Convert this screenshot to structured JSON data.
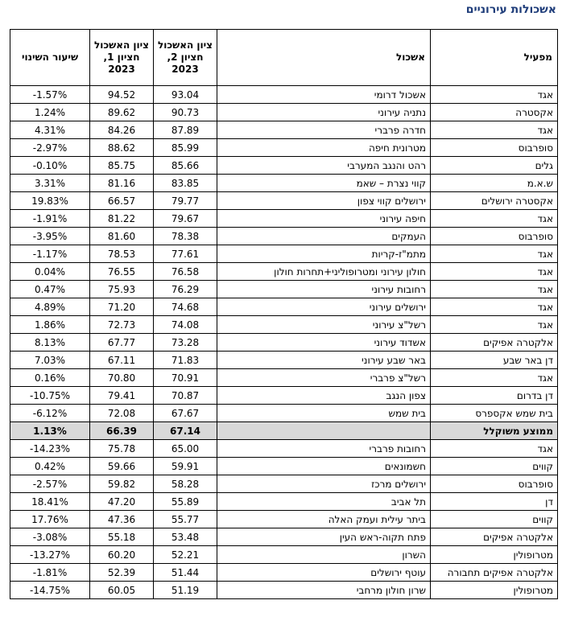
{
  "page": {
    "title": "אשכולות עירוניים"
  },
  "table": {
    "headers": {
      "operator": "מפעיל",
      "cluster": "אשכול",
      "h2": "ציון האשכול חציון 2, 2023",
      "h1": "ציון האשכול חציון 1, 2023",
      "change": "שיעור השינוי"
    },
    "rows": [
      {
        "operator": "אגד",
        "cluster": "אשכול דרומי",
        "h2": "93.04",
        "h1": "94.52",
        "change": "-1.57%"
      },
      {
        "operator": "אקסטרה",
        "cluster": "נתניה עירוני",
        "h2": "90.73",
        "h1": "89.62",
        "change": "1.24%"
      },
      {
        "operator": "אגד",
        "cluster": "חדרה פרברי",
        "h2": "87.89",
        "h1": "84.26",
        "change": "4.31%"
      },
      {
        "operator": "סופרבוס",
        "cluster": "מטרונית חיפה",
        "h2": "85.99",
        "h1": "88.62",
        "change": "-2.97%"
      },
      {
        "operator": "גלים",
        "cluster": "רהט והנגב המערבי",
        "h2": "85.66",
        "h1": "85.75",
        "change": "-0.10%"
      },
      {
        "operator": "ש.א.מ",
        "cluster": "קווי נצרת – שאמ",
        "h2": "83.85",
        "h1": "81.16",
        "change": "3.31%"
      },
      {
        "operator": "אקסטרה ירושלים",
        "cluster": "ירושלים קווי צפון",
        "h2": "79.77",
        "h1": "66.57",
        "change": "19.83%"
      },
      {
        "operator": "אגד",
        "cluster": "חיפה עירוני",
        "h2": "79.67",
        "h1": "81.22",
        "change": "-1.91%"
      },
      {
        "operator": "סופרבוס",
        "cluster": "העמקים",
        "h2": "78.38",
        "h1": "81.60",
        "change": "-3.95%"
      },
      {
        "operator": "אגד",
        "cluster": "מתמ\"ז-קריות",
        "h2": "77.61",
        "h1": "78.53",
        "change": "-1.17%"
      },
      {
        "operator": "אגד",
        "cluster": "חולון עירוני ומטרופוליני+תחרות חולון",
        "h2": "76.58",
        "h1": "76.55",
        "change": "0.04%"
      },
      {
        "operator": "אגד",
        "cluster": "רחובות עירוני",
        "h2": "76.29",
        "h1": "75.93",
        "change": "0.47%"
      },
      {
        "operator": "אגד",
        "cluster": "ירושלים עירוני",
        "h2": "74.68",
        "h1": "71.20",
        "change": "4.89%"
      },
      {
        "operator": "אגד",
        "cluster": "רשל\"צ עירוני",
        "h2": "74.08",
        "h1": "72.73",
        "change": "1.86%"
      },
      {
        "operator": "אלקטרה אפיקים",
        "cluster": "אשדוד עירוני",
        "h2": "73.28",
        "h1": "67.77",
        "change": "8.13%"
      },
      {
        "operator": "דן באר שבע",
        "cluster": "באר שבע עירוני",
        "h2": "71.83",
        "h1": "67.11",
        "change": "7.03%"
      },
      {
        "operator": "אגד",
        "cluster": "רשל\"צ פרברי",
        "h2": "70.91",
        "h1": "70.80",
        "change": "0.16%"
      },
      {
        "operator": "דן בדרום",
        "cluster": "צפון הנגב",
        "h2": "70.87",
        "h1": "79.41",
        "change": "-10.75%"
      },
      {
        "operator": "בית שמש אקספרס",
        "cluster": "בית שמש",
        "h2": "67.67",
        "h1": "72.08",
        "change": "-6.12%"
      },
      {
        "operator": "ממוצע משוקלל",
        "cluster": "",
        "h2": "67.14",
        "h1": "66.39",
        "change": "1.13%",
        "avg": true
      },
      {
        "operator": "אגד",
        "cluster": "רחובות פרברי",
        "h2": "65.00",
        "h1": "75.78",
        "change": "-14.23%"
      },
      {
        "operator": "קווים",
        "cluster": "חשמונאים",
        "h2": "59.91",
        "h1": "59.66",
        "change": "0.42%"
      },
      {
        "operator": "סופרבוס",
        "cluster": "ירושלים מרכז",
        "h2": "58.28",
        "h1": "59.82",
        "change": "-2.57%"
      },
      {
        "operator": "דן",
        "cluster": "תל אביב",
        "h2": "55.89",
        "h1": "47.20",
        "change": "18.41%"
      },
      {
        "operator": "קווים",
        "cluster": "ביתר עילית ועמק האלה",
        "h2": "55.77",
        "h1": "47.36",
        "change": "17.76%"
      },
      {
        "operator": "אלקטרה אפיקים",
        "cluster": "פתח תקוה-ראש העין",
        "h2": "53.48",
        "h1": "55.18",
        "change": "-3.08%"
      },
      {
        "operator": "מטרופולין",
        "cluster": "השרון",
        "h2": "52.21",
        "h1": "60.20",
        "change": "-13.27%"
      },
      {
        "operator": "אלקטרה אפיקים תחבורה",
        "cluster": "עוטף ירושלים",
        "h2": "51.44",
        "h1": "52.39",
        "change": "-1.81%"
      },
      {
        "operator": "מטרופולין",
        "cluster": "שרון חולון מרחבי",
        "h2": "51.19",
        "h1": "60.05",
        "change": "-14.75%"
      }
    ]
  }
}
